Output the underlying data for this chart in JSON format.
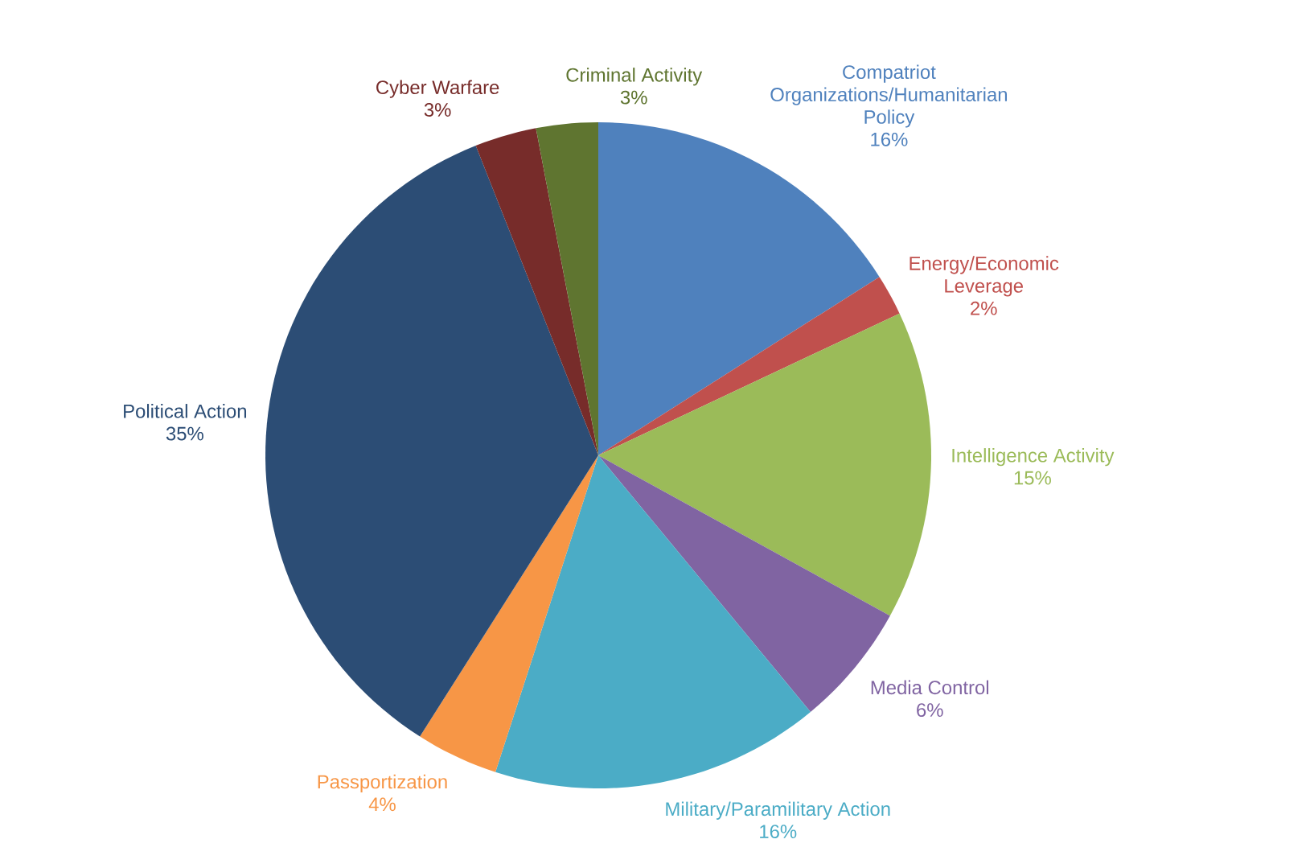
{
  "chart_data": {
    "type": "pie",
    "categories": [
      "Compatriot Organizations/Humanitarian Policy",
      "Energy/Economic Leverage",
      "Intelligence Activity",
      "Media Control",
      "Military/Paramilitary Action",
      "Passportization",
      "Political Action",
      "Cyber Warfare",
      "Criminal Activity"
    ],
    "values": [
      16,
      2,
      15,
      6,
      16,
      4,
      35,
      3,
      3
    ],
    "value_labels": [
      "16%",
      "2%",
      "15%",
      "6%",
      "16%",
      "4%",
      "35%",
      "3%",
      "3%"
    ],
    "colors": [
      "#4f81bd",
      "#c0504d",
      "#9bbb59",
      "#8064a2",
      "#4bacc6",
      "#f79646",
      "#2c4d75",
      "#772c2a",
      "#5f7530"
    ]
  }
}
